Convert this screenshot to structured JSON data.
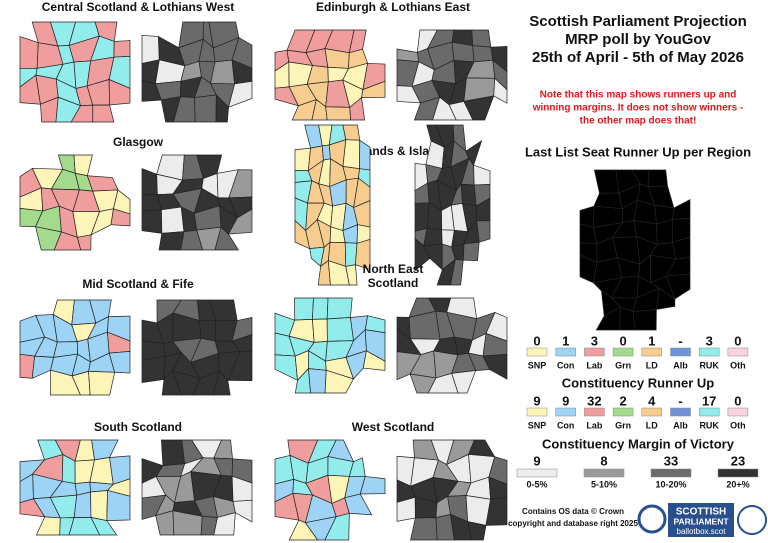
{
  "header": {
    "title_lines": [
      "Scottish Parliament Projection",
      "MRP poll by YouGov",
      "25th of April - 5th of May 2026"
    ],
    "note_lines": [
      "Note that this map shows runners up and",
      "winning margins. It does not show winners -",
      "the other map does that!"
    ],
    "credit_lines": [
      "Contains OS data © Crown",
      "copyright and database right 2025"
    ],
    "logo": {
      "line1": "SCOTTISH",
      "line2": "PARLIAMENT",
      "line3": "ballotbox.scot"
    }
  },
  "regions": [
    {
      "name_lines": [
        "Central Scotland & Lothians West"
      ]
    },
    {
      "name_lines": [
        "Edinburgh & Lothians East"
      ]
    },
    {
      "name_lines": [
        "Glasgow"
      ]
    },
    {
      "name_lines": [
        "Highlands & Islands"
      ]
    },
    {
      "name_lines": [
        "Mid Scotland & Fife"
      ]
    },
    {
      "name_lines": [
        "North East",
        "Scotland"
      ]
    },
    {
      "name_lines": [
        "South Scotland"
      ]
    },
    {
      "name_lines": [
        "West Scotland"
      ]
    }
  ],
  "list_runner_up": {
    "title": "Last List Seat Runner Up per Region",
    "parties": [
      {
        "count": 0,
        "label": "SNP",
        "color": "#fdf5b8"
      },
      {
        "count": 1,
        "label": "Con",
        "color": "#9dd3f4"
      },
      {
        "count": 3,
        "label": "Lab",
        "color": "#f09d9d"
      },
      {
        "count": 0,
        "label": "Grn",
        "color": "#a3da8c"
      },
      {
        "count": 1,
        "label": "LD",
        "color": "#f6cd8f"
      },
      {
        "count": "-",
        "label": "Alb",
        "color": "#6f93d8"
      },
      {
        "count": 3,
        "label": "RUK",
        "color": "#92ecec"
      },
      {
        "count": 0,
        "label": "Oth",
        "color": "#f9d3de"
      }
    ]
  },
  "constituency_runner_up": {
    "title": "Constituency Runner Up",
    "parties": [
      {
        "count": 9,
        "label": "SNP"
      },
      {
        "count": 9,
        "label": "Con"
      },
      {
        "count": 32,
        "label": "Lab"
      },
      {
        "count": 2,
        "label": "Grn"
      },
      {
        "count": 4,
        "label": "LD"
      },
      {
        "count": "-",
        "label": "Alb"
      },
      {
        "count": 17,
        "label": "RUK"
      },
      {
        "count": 0,
        "label": "Oth"
      }
    ]
  },
  "margin": {
    "title": "Constituency Margin of Victory",
    "bands": [
      {
        "count": 9,
        "label": "0-5%",
        "color": "#ececec"
      },
      {
        "count": 8,
        "label": "5-10%",
        "color": "#9a9a9a"
      },
      {
        "count": 33,
        "label": "10-20%",
        "color": "#6a6a6a"
      },
      {
        "count": 23,
        "label": "20+%",
        "color": "#333333"
      }
    ]
  }
}
